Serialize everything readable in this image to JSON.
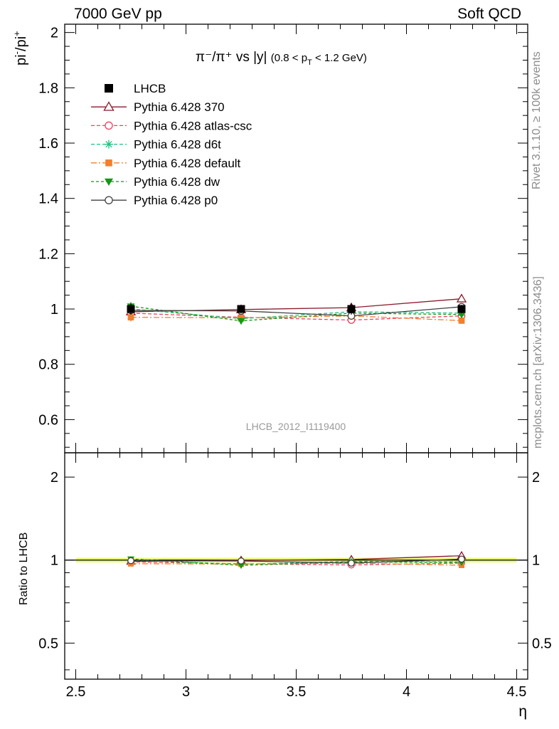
{
  "header": {
    "left": "7000 GeV pp",
    "right": "Soft QCD"
  },
  "side_labels": {
    "rivet": "Rivet 3.1.10, ≥ 100k events",
    "mcplots": "mcplots.cern.ch [arXiv:1306.3436]"
  },
  "plot_title": {
    "main": "π⁻/π⁺ vs |y|",
    "cut": "(0.8 < p",
    "cut_sub": "T",
    "cut_end": " < 1.2 GeV)"
  },
  "ylabel": {
    "base": "pi",
    "sup1": "-",
    "mid": "/pi",
    "sup2": "+"
  },
  "ratio_ylabel": "Ratio to LHCB",
  "xlabel": "η",
  "analysis_id": "LHCB_2012_I1119400",
  "colors": {
    "lhcb": "#000000",
    "p370": "#8b1a2c",
    "atlas": "#f04060",
    "d6t": "#20c080",
    "default": "#f08030",
    "dw": "#109a10",
    "p0": "#404040",
    "band": "#e8ff70"
  },
  "chart_data": {
    "type": "line",
    "x": [
      2.75,
      3.25,
      3.75,
      4.25
    ],
    "xlim": [
      2.45,
      4.55
    ],
    "ylim": [
      0.48,
      2.03
    ],
    "ratio_ylim": [
      0.37,
      2.45
    ],
    "x_ticks": [
      "2.5",
      "3",
      "3.5",
      "4",
      "4.5"
    ],
    "x_tick_values": [
      2.5,
      3,
      3.5,
      4,
      4.5
    ],
    "y_ticks": [
      "0.6",
      "0.8",
      "1",
      "1.2",
      "1.4",
      "1.6",
      "1.8",
      "2"
    ],
    "y_tick_values": [
      0.6,
      0.8,
      1.0,
      1.2,
      1.4,
      1.6,
      1.8,
      2.0
    ],
    "ratio_y_ticks": [
      "0.5",
      "1",
      "2"
    ],
    "ratio_y_tick_values": [
      0.5,
      1,
      2
    ],
    "series": [
      {
        "key": "lhcb",
        "name": "LHCB",
        "marker": "square",
        "dash": "",
        "values": [
          1.0,
          1.0,
          1.0,
          1.0
        ],
        "errors": [
          0.02,
          0.015,
          0.02,
          0.015
        ],
        "ratio": [
          1.0,
          1.0,
          1.0,
          1.0
        ]
      },
      {
        "key": "p370",
        "name": "Pythia 6.428 370",
        "marker": "triangle-open",
        "dash": "",
        "values": [
          0.99,
          0.998,
          1.005,
          1.037
        ],
        "errors": [
          0.01,
          0.01,
          0.01,
          0.012
        ],
        "ratio": [
          0.99,
          0.998,
          1.005,
          1.037
        ]
      },
      {
        "key": "atlas",
        "name": "Pythia 6.428 atlas-csc",
        "marker": "circle-open",
        "dash": "5,3",
        "values": [
          0.985,
          0.97,
          0.96,
          0.975
        ],
        "errors": [
          0.01,
          0.01,
          0.01,
          0.01
        ],
        "ratio": [
          0.985,
          0.97,
          0.96,
          0.975
        ]
      },
      {
        "key": "d6t",
        "name": "Pythia 6.428 d6t",
        "marker": "star",
        "dash": "5,3",
        "values": [
          1.0,
          0.965,
          0.99,
          0.985
        ],
        "errors": [
          0.01,
          0.01,
          0.01,
          0.01
        ],
        "ratio": [
          1.0,
          0.965,
          0.99,
          0.985
        ]
      },
      {
        "key": "default",
        "name": "Pythia 6.428 default",
        "marker": "square-filled",
        "dash": "8,3,2,3",
        "values": [
          0.97,
          0.968,
          0.975,
          0.958
        ],
        "errors": [
          0.015,
          0.01,
          0.01,
          0.012
        ],
        "ratio": [
          0.97,
          0.968,
          0.975,
          0.958
        ]
      },
      {
        "key": "dw",
        "name": "Pythia 6.428 dw",
        "marker": "triangle-down",
        "dash": "4,3",
        "values": [
          1.01,
          0.957,
          0.985,
          0.98
        ],
        "errors": [
          0.015,
          0.012,
          0.01,
          0.01
        ],
        "ratio": [
          1.01,
          0.957,
          0.985,
          0.98
        ]
      },
      {
        "key": "p0",
        "name": "Pythia 6.428 p0",
        "marker": "circle-open",
        "dash": "",
        "values": [
          0.995,
          0.993,
          0.975,
          1.008
        ],
        "errors": [
          0.01,
          0.01,
          0.01,
          0.01
        ],
        "ratio": [
          0.995,
          0.993,
          0.975,
          1.008
        ]
      }
    ]
  }
}
